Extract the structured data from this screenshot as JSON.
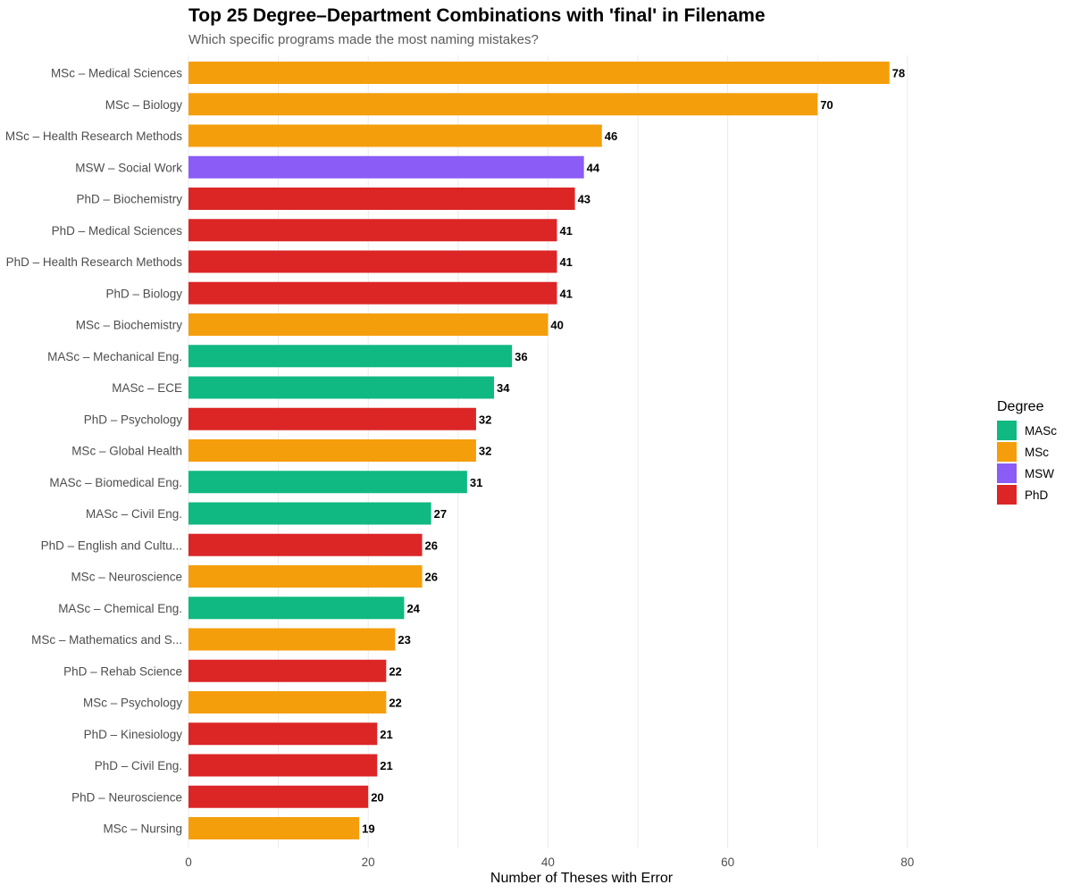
{
  "chart_data": {
    "type": "bar",
    "orientation": "horizontal",
    "title": "Top 25 Degree–Department Combinations with 'final' in Filename",
    "subtitle": "Which specific programs made the most naming mistakes?",
    "xlabel": "Number of Theses with Error",
    "ylabel": "",
    "xlim": [
      0,
      90
    ],
    "xticks": [
      0,
      20,
      40,
      60,
      80
    ],
    "grid": true,
    "legend": {
      "title": "Degree",
      "placement": "right",
      "entries": [
        {
          "name": "MASc",
          "color": "#10b981"
        },
        {
          "name": "MSc",
          "color": "#f59e0b"
        },
        {
          "name": "MSW",
          "color": "#8b5cf6"
        },
        {
          "name": "PhD",
          "color": "#dc2626"
        }
      ]
    },
    "bars": [
      {
        "label": "MSc – Medical Sciences",
        "degree": "MSc",
        "value": 78
      },
      {
        "label": "MSc – Biology",
        "degree": "MSc",
        "value": 70
      },
      {
        "label": "MSc – Health Research Methods",
        "degree": "MSc",
        "value": 46
      },
      {
        "label": "MSW – Social Work",
        "degree": "MSW",
        "value": 44
      },
      {
        "label": "PhD – Biochemistry",
        "degree": "PhD",
        "value": 43
      },
      {
        "label": "PhD – Medical Sciences",
        "degree": "PhD",
        "value": 41
      },
      {
        "label": "PhD – Health Research Methods",
        "degree": "PhD",
        "value": 41
      },
      {
        "label": "PhD – Biology",
        "degree": "PhD",
        "value": 41
      },
      {
        "label": "MSc – Biochemistry",
        "degree": "MSc",
        "value": 40
      },
      {
        "label": "MASc – Mechanical Eng.",
        "degree": "MASc",
        "value": 36
      },
      {
        "label": "MASc – ECE",
        "degree": "MASc",
        "value": 34
      },
      {
        "label": "PhD – Psychology",
        "degree": "PhD",
        "value": 32
      },
      {
        "label": "MSc – Global Health",
        "degree": "MSc",
        "value": 32
      },
      {
        "label": "MASc – Biomedical Eng.",
        "degree": "MASc",
        "value": 31
      },
      {
        "label": "MASc – Civil Eng.",
        "degree": "MASc",
        "value": 27
      },
      {
        "label": "PhD – English and Cultu...",
        "degree": "PhD",
        "value": 26
      },
      {
        "label": "MSc – Neuroscience",
        "degree": "MSc",
        "value": 26
      },
      {
        "label": "MASc – Chemical Eng.",
        "degree": "MASc",
        "value": 24
      },
      {
        "label": "MSc – Mathematics and S...",
        "degree": "MSc",
        "value": 23
      },
      {
        "label": "PhD – Rehab Science",
        "degree": "PhD",
        "value": 22
      },
      {
        "label": "MSc – Psychology",
        "degree": "MSc",
        "value": 22
      },
      {
        "label": "PhD – Kinesiology",
        "degree": "PhD",
        "value": 21
      },
      {
        "label": "PhD – Civil Eng.",
        "degree": "PhD",
        "value": 21
      },
      {
        "label": "PhD – Neuroscience",
        "degree": "PhD",
        "value": 20
      },
      {
        "label": "MSc – Nursing",
        "degree": "MSc",
        "value": 19
      }
    ]
  }
}
